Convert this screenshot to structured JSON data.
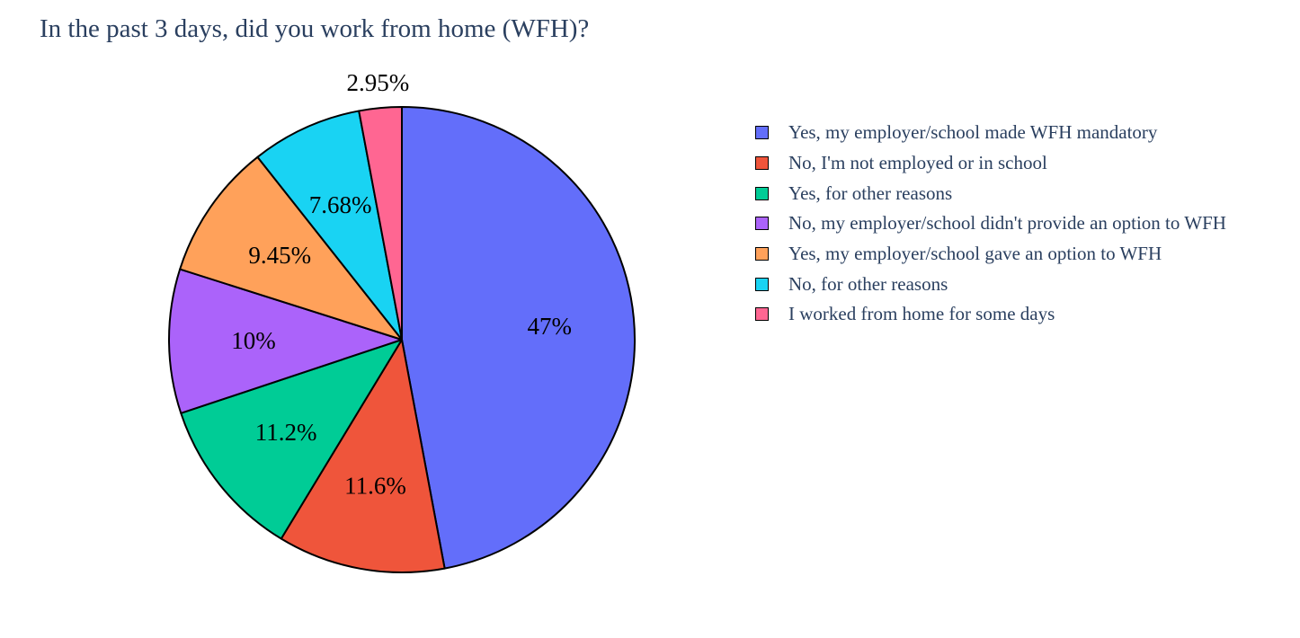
{
  "chart_data": {
    "type": "pie",
    "title": "In the past 3 days, did you work from home (WFH)?",
    "legend_position": "right",
    "slices": [
      {
        "label": "Yes, my employer/school made WFH mandatory",
        "percent_label": "47%",
        "value": 47.0,
        "color": "#636efa"
      },
      {
        "label": "No, I'm not employed or in school",
        "percent_label": "11.6%",
        "value": 11.6,
        "color": "#ef553b"
      },
      {
        "label": "Yes, for other reasons",
        "percent_label": "11.2%",
        "value": 11.2,
        "color": "#00cc96"
      },
      {
        "label": "No, my employer/school didn't provide an option to WFH",
        "percent_label": "10%",
        "value": 10.0,
        "color": "#ab63fa"
      },
      {
        "label": "Yes, my employer/school gave an option to WFH",
        "percent_label": "9.45%",
        "value": 9.45,
        "color": "#ffa15a"
      },
      {
        "label": "No, for other reasons",
        "percent_label": "7.68%",
        "value": 7.68,
        "color": "#19d3f3"
      },
      {
        "label": "I worked from home for some days",
        "percent_label": "2.95%",
        "value": 2.95,
        "color": "#ff6692"
      }
    ],
    "sort": "descending",
    "direction": "clockwise",
    "rotation_start": "12 o'clock"
  }
}
